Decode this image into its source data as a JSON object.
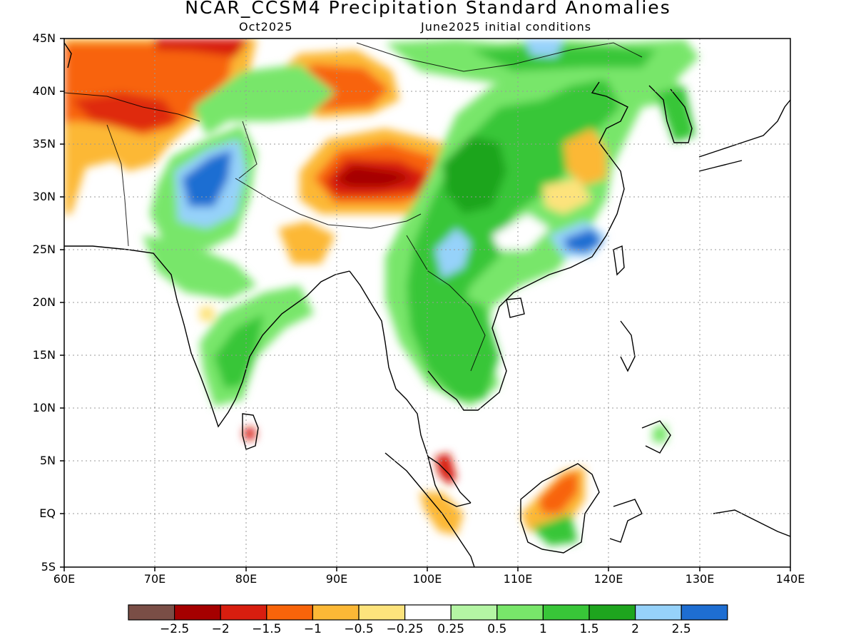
{
  "title": "NCAR_CCSM4 Precipitation Standard Anomalies",
  "subtitle_left": "Oct2025",
  "subtitle_right": "June2025 initial conditions",
  "lat_labels": [
    "45N",
    "40N",
    "35N",
    "30N",
    "25N",
    "20N",
    "15N",
    "10N",
    "5N",
    "EQ",
    "5S"
  ],
  "lon_labels": [
    "60E",
    "70E",
    "80E",
    "90E",
    "100E",
    "110E",
    "120E",
    "130E",
    "140E"
  ],
  "colorbar": {
    "colors": [
      "#7a4e46",
      "#a50000",
      "#d81e0f",
      "#f8640a",
      "#fcb836",
      "#fde37c",
      "#ffffff",
      "#b4f5a4",
      "#78e66a",
      "#38c638",
      "#1ea51e",
      "#96d2fa",
      "#1e6ed2"
    ],
    "tick_labels": [
      "-2.5",
      "-2",
      "-1.5",
      "-1",
      "-0.5",
      "-0.25",
      "0.25",
      "0.5",
      "1",
      "1.5",
      "2",
      "2.5"
    ]
  }
}
